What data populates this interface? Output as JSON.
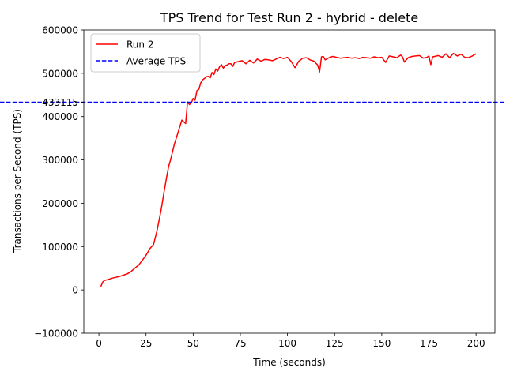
{
  "chart_data": {
    "type": "line",
    "title": "TPS Trend for Test Run 2 - hybrid - delete",
    "xlabel": "Time (seconds)",
    "ylabel": "Transactions per Second (TPS)",
    "xlim": [
      -8,
      210
    ],
    "ylim": [
      -100000,
      600000
    ],
    "xticks": [
      0,
      25,
      50,
      75,
      100,
      125,
      150,
      175,
      200
    ],
    "yticks": [
      -100000,
      0,
      100000,
      200000,
      300000,
      400000,
      500000,
      600000
    ],
    "ytick_labels": [
      "−100000",
      "0",
      "100000",
      "200000",
      "300000",
      "400000",
      "500000",
      "600000"
    ],
    "grid": false,
    "legend_position": "upper-left",
    "series": [
      {
        "name": "Run 2",
        "color": "#ff0000",
        "style": "solid",
        "x": [
          1,
          2,
          3,
          5,
          7,
          9,
          11,
          13,
          15,
          17,
          19,
          21,
          23,
          25,
          27,
          29,
          31,
          33,
          35,
          37,
          38,
          40,
          42,
          44,
          46,
          47,
          48,
          49,
          50,
          51,
          52,
          53,
          54,
          55,
          56,
          57,
          58,
          59,
          60,
          61,
          62,
          63,
          64,
          65,
          66,
          67,
          68,
          69,
          70,
          71,
          72,
          74,
          76,
          78,
          80,
          82,
          84,
          86,
          88,
          90,
          92,
          94,
          96,
          98,
          100,
          102,
          104,
          106,
          107,
          108,
          110,
          112,
          114,
          116,
          117,
          118,
          119,
          120,
          122,
          124,
          126,
          128,
          130,
          132,
          134,
          136,
          138,
          140,
          142,
          144,
          146,
          148,
          150,
          152,
          154,
          156,
          158,
          160,
          161,
          162,
          164,
          166,
          168,
          170,
          172,
          174,
          175,
          176,
          177,
          178,
          180,
          182,
          184,
          186,
          188,
          190,
          192,
          194,
          196,
          198,
          200
        ],
        "y": [
          8000,
          18000,
          22000,
          24000,
          27000,
          29000,
          31000,
          34000,
          37000,
          42000,
          50000,
          57000,
          68000,
          80000,
          95000,
          105000,
          140000,
          185000,
          238000,
          285000,
          300000,
          336000,
          364000,
          392000,
          384000,
          434000,
          428000,
          432000,
          442000,
          438000,
          460000,
          463000,
          478000,
          485000,
          488000,
          492000,
          493000,
          489000,
          502000,
          497000,
          510000,
          505000,
          515000,
          520000,
          512000,
          518000,
          519000,
          522000,
          522000,
          516000,
          525000,
          527000,
          529000,
          522000,
          530000,
          524000,
          533000,
          528000,
          532000,
          531000,
          529000,
          533000,
          537000,
          534000,
          537000,
          527000,
          513000,
          528000,
          531000,
          535000,
          536000,
          531000,
          528000,
          519000,
          503000,
          538000,
          539000,
          531000,
          536000,
          539000,
          537000,
          535000,
          536000,
          537000,
          535000,
          536000,
          534000,
          537000,
          536000,
          535000,
          538000,
          536000,
          537000,
          525000,
          540000,
          538000,
          536000,
          542000,
          538000,
          526000,
          536000,
          539000,
          540000,
          541000,
          535000,
          537000,
          540000,
          520000,
          538000,
          539000,
          541000,
          537000,
          545000,
          536000,
          546000,
          540000,
          544000,
          537000,
          536000,
          540000,
          545000
        ]
      },
      {
        "name": "Average TPS",
        "color": "#0000ff",
        "style": "dashed",
        "type": "hline",
        "value": 433115,
        "label": "433115"
      }
    ]
  }
}
